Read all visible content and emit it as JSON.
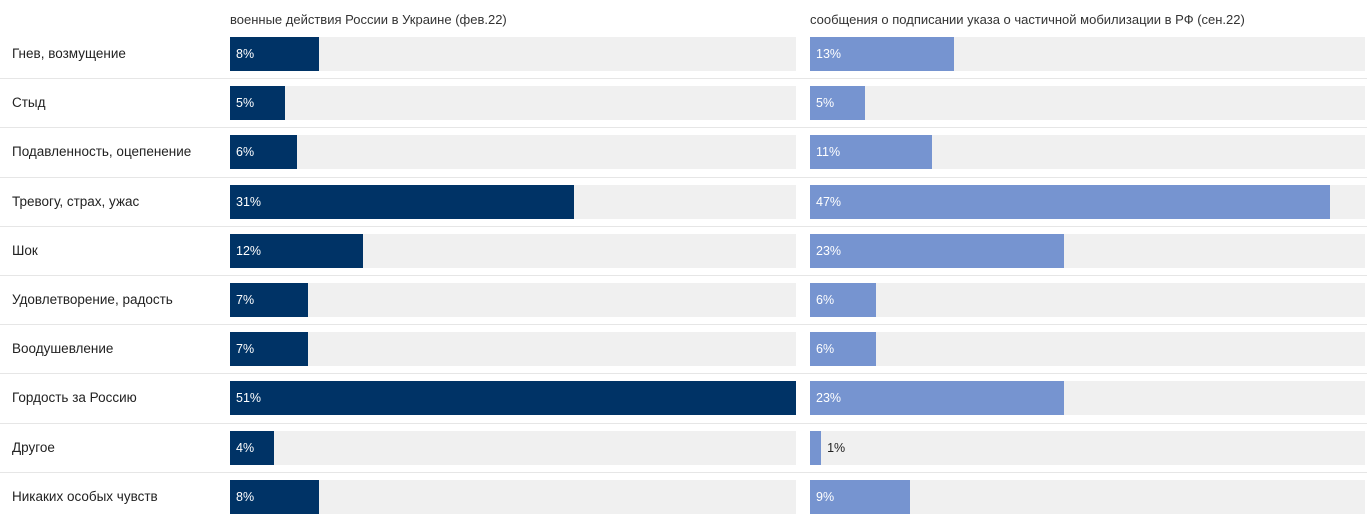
{
  "chart_data": {
    "type": "bar",
    "orientation": "horizontal",
    "categories": [
      "Гнев, возмущение",
      "Стыд",
      "Подавленность, оцепенение",
      "Тревогу, страх, ужас",
      "Шок",
      "Удовлетворение, радость",
      "Воодушевление",
      "Гордость за Россию",
      "Другое",
      "Никаких особых чувств"
    ],
    "series": [
      {
        "name": "военные действия России в Украине (фев.22)",
        "color": "#003366",
        "values": [
          8,
          5,
          6,
          31,
          12,
          7,
          7,
          51,
          4,
          8
        ],
        "labels": [
          "8%",
          "5%",
          "6%",
          "31%",
          "12%",
          "7%",
          "7%",
          "51%",
          "4%",
          "8%"
        ]
      },
      {
        "name": "сообщения о подписании указа о частичной мобилизации в РФ (сен.22)",
        "color": "#7694d0",
        "values": [
          13,
          5,
          11,
          47,
          23,
          6,
          6,
          23,
          1,
          9
        ],
        "labels": [
          "13%",
          "5%",
          "11%",
          "47%",
          "23%",
          "6%",
          "6%",
          "23%",
          "1%",
          "9%"
        ]
      }
    ],
    "xlim": [
      0,
      51
    ],
    "grid": false,
    "legend": "panel titles above each column"
  }
}
